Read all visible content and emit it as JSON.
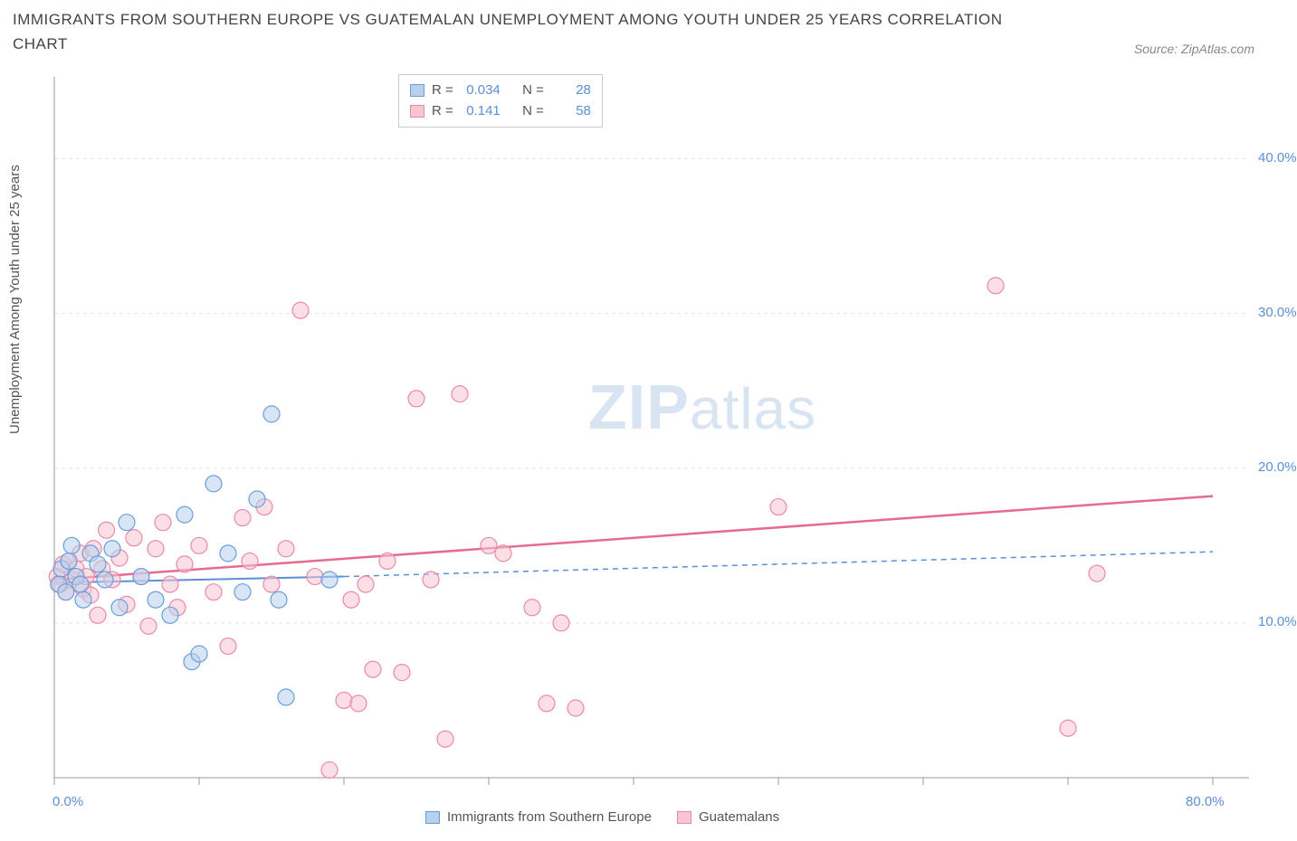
{
  "title": "IMMIGRANTS FROM SOUTHERN EUROPE VS GUATEMALAN UNEMPLOYMENT AMONG YOUTH UNDER 25 YEARS CORRELATION CHART",
  "source": "Source: ZipAtlas.com",
  "ylabel": "Unemployment Among Youth under 25 years",
  "watermark_zip": "ZIP",
  "watermark_atlas": "atlas",
  "chart": {
    "type": "scatter",
    "xlim": [
      0,
      80
    ],
    "ylim": [
      0,
      45
    ],
    "xticks": [
      0,
      10,
      20,
      30,
      40,
      50,
      60,
      70,
      80
    ],
    "xtick_labels_shown": {
      "0": "0.0%",
      "80": "80.0%"
    },
    "yticks": [
      10,
      20,
      30,
      40
    ],
    "ytick_labels": [
      "10.0%",
      "20.0%",
      "30.0%",
      "40.0%"
    ],
    "grid_color": "#e5e5e5",
    "grid_dash": "4,4",
    "axis_color": "#999999",
    "background_color": "#ffffff",
    "marker_radius": 9,
    "marker_stroke_width": 1.2,
    "watermark_color": "#dbe6f3",
    "series": [
      {
        "name": "Immigrants from Southern Europe",
        "fill": "#b8d0ec",
        "stroke": "#6a9edb",
        "fill_opacity": 0.55,
        "R": "0.034",
        "N": "28",
        "trend": {
          "x1": 0,
          "y1": 12.6,
          "x2": 20,
          "y2": 13.0,
          "solid_until_x": 20,
          "extend_to_x": 80,
          "extend_y": 14.6,
          "color": "#5b8fd6",
          "width": 2
        },
        "points": [
          [
            0.3,
            12.5
          ],
          [
            0.5,
            13.5
          ],
          [
            0.8,
            12.0
          ],
          [
            1.0,
            14.0
          ],
          [
            1.2,
            15.0
          ],
          [
            1.5,
            13.0
          ],
          [
            1.8,
            12.5
          ],
          [
            2.0,
            11.5
          ],
          [
            2.5,
            14.5
          ],
          [
            3.0,
            13.8
          ],
          [
            3.5,
            12.8
          ],
          [
            4.0,
            14.8
          ],
          [
            4.5,
            11.0
          ],
          [
            5.0,
            16.5
          ],
          [
            6.0,
            13.0
          ],
          [
            7.0,
            11.5
          ],
          [
            8.0,
            10.5
          ],
          [
            9.0,
            17.0
          ],
          [
            9.5,
            7.5
          ],
          [
            10.0,
            8.0
          ],
          [
            11.0,
            19.0
          ],
          [
            12.0,
            14.5
          ],
          [
            13.0,
            12.0
          ],
          [
            14.0,
            18.0
          ],
          [
            15.0,
            23.5
          ],
          [
            15.5,
            11.5
          ],
          [
            16.0,
            5.2
          ],
          [
            19.0,
            12.8
          ]
        ]
      },
      {
        "name": "Guatemalans",
        "fill": "#f6c7d1",
        "stroke": "#ec8aa5",
        "fill_opacity": 0.55,
        "R": "0.141",
        "N": "58",
        "trend": {
          "x1": 0,
          "y1": 12.8,
          "x2": 80,
          "y2": 18.2,
          "color": "#e76a8f",
          "width": 2.5
        },
        "points": [
          [
            0.2,
            13.0
          ],
          [
            0.4,
            12.5
          ],
          [
            0.6,
            13.8
          ],
          [
            0.8,
            12.0
          ],
          [
            1.0,
            14.0
          ],
          [
            1.2,
            12.8
          ],
          [
            1.5,
            13.5
          ],
          [
            1.8,
            14.5
          ],
          [
            2.0,
            12.2
          ],
          [
            2.2,
            13.0
          ],
          [
            2.5,
            11.8
          ],
          [
            2.7,
            14.8
          ],
          [
            3.0,
            10.5
          ],
          [
            3.3,
            13.5
          ],
          [
            3.6,
            16.0
          ],
          [
            4.0,
            12.8
          ],
          [
            4.5,
            14.2
          ],
          [
            5.0,
            11.2
          ],
          [
            5.5,
            15.5
          ],
          [
            6.0,
            13.0
          ],
          [
            6.5,
            9.8
          ],
          [
            7.0,
            14.8
          ],
          [
            7.5,
            16.5
          ],
          [
            8.0,
            12.5
          ],
          [
            8.5,
            11.0
          ],
          [
            9.0,
            13.8
          ],
          [
            10.0,
            15.0
          ],
          [
            11.0,
            12.0
          ],
          [
            12.0,
            8.5
          ],
          [
            13.0,
            16.8
          ],
          [
            13.5,
            14.0
          ],
          [
            14.5,
            17.5
          ],
          [
            15.0,
            12.5
          ],
          [
            16.0,
            14.8
          ],
          [
            17.0,
            30.2
          ],
          [
            18.0,
            13.0
          ],
          [
            19.0,
            0.5
          ],
          [
            20.0,
            5.0
          ],
          [
            20.5,
            11.5
          ],
          [
            21.0,
            4.8
          ],
          [
            21.5,
            12.5
          ],
          [
            22.0,
            7.0
          ],
          [
            23.0,
            14.0
          ],
          [
            24.0,
            6.8
          ],
          [
            25.0,
            24.5
          ],
          [
            26.0,
            12.8
          ],
          [
            27.0,
            2.5
          ],
          [
            28.0,
            24.8
          ],
          [
            30.0,
            15.0
          ],
          [
            31.0,
            14.5
          ],
          [
            33.0,
            11.0
          ],
          [
            34.0,
            4.8
          ],
          [
            35.0,
            10.0
          ],
          [
            36.0,
            4.5
          ],
          [
            50.0,
            17.5
          ],
          [
            65.0,
            31.8
          ],
          [
            70.0,
            3.2
          ],
          [
            72.0,
            13.2
          ]
        ]
      }
    ]
  },
  "legend": {
    "series1_label": "Immigrants from Southern Europe",
    "series2_label": "Guatemalans"
  },
  "stats_box": {
    "r_label": "R =",
    "n_label": "N ="
  }
}
